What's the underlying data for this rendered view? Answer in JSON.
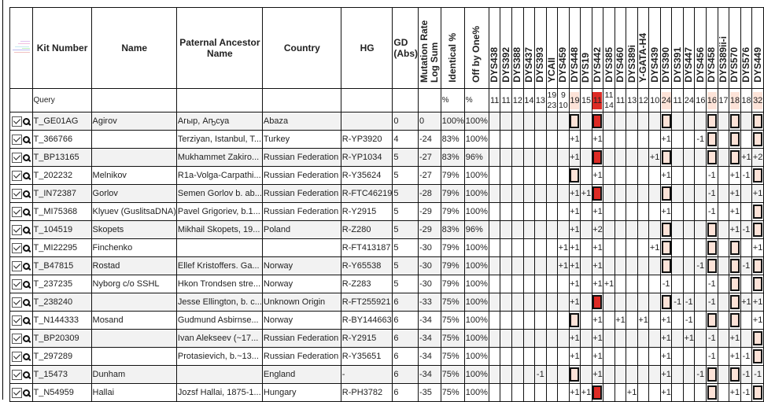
{
  "colors": {
    "match_highlight": "#fde3d8",
    "mismatch_red": "#dd2b25",
    "alt_row": "#f2f2f2"
  },
  "headers": {
    "tree_icon": "tree-icon",
    "kit": "Kit Number",
    "name": "Name",
    "ancestor": "Paternal Ancestor Name",
    "country": "Country",
    "hg": "HG",
    "gd": "GD (Abs)",
    "mut": "Mutation Rate Log Sum",
    "ident": "Identical %",
    "off": "Off by One%",
    "markers": [
      "DYS438",
      "DYS392",
      "DYS388",
      "DYS437",
      "DYS393",
      "YCAII",
      "DYS459",
      "DYS448",
      "DYS19",
      "DYS442",
      "DYS385",
      "DYS460",
      "DYS389i",
      "Y-GATA-H4",
      "DYS439",
      "DYS390",
      "DYS391",
      "DYS447",
      "DYS456",
      "DYS458",
      "DYS389ii-i",
      "DYS570",
      "DYS576",
      "DYS449"
    ]
  },
  "query": {
    "label": "Query",
    "ident": "%",
    "off": "%",
    "values": [
      "11",
      "11",
      "12",
      "14",
      "13",
      "19 23",
      "9 10",
      "19",
      "15",
      "11",
      "11 14",
      "11",
      "13",
      "12",
      "10",
      "24",
      "11",
      "24",
      "16",
      "16",
      "17",
      "18",
      "18",
      "32"
    ],
    "highlight": [
      "",
      "",
      "",
      "",
      "",
      "",
      "",
      "pink",
      "",
      "red",
      "",
      "",
      "",
      "",
      "",
      "pink",
      "",
      "",
      "",
      "pink",
      "",
      "pink",
      "",
      "pink"
    ]
  },
  "rows": [
    {
      "kit": "T_GE01AG",
      "name": "Agirov",
      "ancestor": "Агыр, Аҧсуа",
      "country": "Abaza",
      "hg": "",
      "gd": "0",
      "mut": "0",
      "ident": "100%",
      "off": "100%",
      "checked": true,
      "cells": [
        "",
        "",
        "",
        "",
        "",
        "",
        "",
        "box",
        "",
        "red",
        "",
        "",
        "",
        "",
        "",
        "box",
        "",
        "",
        "",
        "box",
        "",
        "box",
        "",
        "box"
      ]
    },
    {
      "kit": "T_366766",
      "name": "",
      "ancestor": "Terziyan, Istanbul, T...",
      "country": "Turkey",
      "hg": "R-YP3920",
      "gd": "4",
      "mut": "-24",
      "ident": "83%",
      "off": "100%",
      "checked": true,
      "cells": [
        "",
        "",
        "",
        "",
        "",
        "",
        "",
        "+1",
        "",
        "+1",
        "",
        "",
        "",
        "",
        "",
        "+1",
        "",
        "",
        "-1",
        "box",
        "",
        "box",
        "",
        "box"
      ]
    },
    {
      "kit": "T_BP13165",
      "name": "",
      "ancestor": "Mukhammet Zakiro...",
      "country": "Russian Federation",
      "hg": "R-YP1034",
      "gd": "5",
      "mut": "-27",
      "ident": "83%",
      "off": "96%",
      "checked": true,
      "cells": [
        "",
        "",
        "",
        "",
        "",
        "",
        "",
        "+1",
        "",
        "red",
        "",
        "",
        "",
        "",
        "+1",
        "box",
        "",
        "",
        "",
        "box",
        "",
        "box",
        "+1",
        "+2"
      ]
    },
    {
      "kit": "T_202232",
      "name": "Melnikov",
      "ancestor": "R1a-Volga-Carpathi...",
      "country": "Russian Federation",
      "hg": "R-Y35624",
      "gd": "5",
      "mut": "-27",
      "ident": "79%",
      "off": "100%",
      "checked": true,
      "cells": [
        "",
        "",
        "",
        "",
        "",
        "",
        "",
        "box",
        "",
        "+1",
        "",
        "",
        "",
        "",
        "",
        "+1",
        "",
        "",
        "",
        "-1",
        "",
        "+1",
        "-1",
        "box"
      ]
    },
    {
      "kit": "T_IN72387",
      "name": "Gorlov",
      "ancestor": "Semen Gorlov b. ab...",
      "country": "Russian Federation",
      "hg": "R-FTC46219",
      "gd": "5",
      "mut": "-28",
      "ident": "79%",
      "off": "100%",
      "checked": true,
      "cells": [
        "",
        "",
        "",
        "",
        "",
        "",
        "",
        "+1",
        "+1",
        "red",
        "",
        "",
        "",
        "",
        "",
        "box",
        "",
        "",
        "",
        "-1",
        "",
        "+1",
        "",
        "+1"
      ]
    },
    {
      "kit": "T_MI75368",
      "name": "Klyuev (GuslitsaDNA)",
      "ancestor": "Pavel Grigoriev, b.1...",
      "country": "Russian Federation",
      "hg": "R-Y2915",
      "gd": "5",
      "mut": "-29",
      "ident": "79%",
      "off": "100%",
      "checked": true,
      "cells": [
        "",
        "",
        "",
        "",
        "",
        "",
        "",
        "+1",
        "",
        "+1",
        "",
        "",
        "",
        "",
        "",
        "+1",
        "",
        "",
        "",
        "-1",
        "",
        "+1",
        "",
        "box"
      ]
    },
    {
      "kit": "T_104519",
      "name": "Skopets",
      "ancestor": "Mikhail Skopets, 19...",
      "country": "Poland",
      "hg": "R-Z280",
      "gd": "5",
      "mut": "-29",
      "ident": "83%",
      "off": "96%",
      "checked": true,
      "cells": [
        "",
        "",
        "",
        "",
        "",
        "",
        "",
        "+1",
        "",
        "+2",
        "",
        "",
        "",
        "",
        "",
        "box",
        "",
        "",
        "",
        "box",
        "",
        "+1",
        "-1",
        "box"
      ]
    },
    {
      "kit": "T_MI22295",
      "name": "Finchenko",
      "ancestor": "",
      "country": "",
      "hg": "R-FT413187",
      "gd": "5",
      "mut": "-30",
      "ident": "79%",
      "off": "100%",
      "checked": true,
      "cells": [
        "",
        "",
        "",
        "",
        "",
        "",
        "+1",
        "+1",
        "",
        "+1",
        "",
        "",
        "",
        "",
        "+1",
        "box",
        "",
        "",
        "",
        "box",
        "",
        "box",
        "",
        "+1"
      ]
    },
    {
      "kit": "T_B47815",
      "name": "Rostad",
      "ancestor": "Ellef Kristoffers. Ga...",
      "country": "Norway",
      "hg": "R-Y65538",
      "gd": "5",
      "mut": "-30",
      "ident": "79%",
      "off": "100%",
      "checked": true,
      "cells": [
        "",
        "",
        "",
        "",
        "",
        "",
        "+1",
        "+1",
        "",
        "+1",
        "",
        "",
        "",
        "",
        "",
        "box",
        "",
        "",
        "-1",
        "box",
        "",
        "box",
        "-1",
        "box"
      ]
    },
    {
      "kit": "T_237235",
      "name": "Nyborg c/o SSHL",
      "ancestor": "Hkon Trondsen stre...",
      "country": "Norway",
      "hg": "R-Z283",
      "gd": "5",
      "mut": "-30",
      "ident": "79%",
      "off": "100%",
      "checked": true,
      "cells": [
        "",
        "",
        "",
        "",
        "",
        "",
        "",
        "+1",
        "",
        "+1",
        "+1",
        "",
        "",
        "",
        "",
        "-1",
        "",
        "",
        "",
        "-1",
        "",
        "box",
        "",
        "box"
      ]
    },
    {
      "kit": "T_238240",
      "name": "",
      "ancestor": "Jesse Ellington, b. c...",
      "country": "Unknown Origin",
      "hg": "R-FT255921",
      "gd": "6",
      "mut": "-33",
      "ident": "75%",
      "off": "100%",
      "checked": true,
      "cells": [
        "",
        "",
        "",
        "",
        "",
        "",
        "",
        "+1",
        "",
        "red",
        "",
        "",
        "",
        "",
        "",
        "box",
        "-1",
        "-1",
        "",
        "-1",
        "",
        "box",
        "+1",
        "+1"
      ]
    },
    {
      "kit": "T_N144333",
      "name": "Mosand",
      "ancestor": "Gudmund Asbirnse...",
      "country": "Norway",
      "hg": "R-BY144663",
      "gd": "6",
      "mut": "-34",
      "ident": "75%",
      "off": "100%",
      "checked": true,
      "cells": [
        "",
        "",
        "",
        "",
        "",
        "",
        "",
        "box",
        "",
        "+1",
        "",
        "+1",
        "",
        "+1",
        "",
        "+1",
        "",
        "-1",
        "",
        "box",
        "",
        "box",
        "",
        "+1"
      ]
    },
    {
      "kit": "T_BP20309",
      "name": "",
      "ancestor": "Ivan Alekseev (~17...",
      "country": "Russian Federation",
      "hg": "R-Y2915",
      "gd": "6",
      "mut": "-34",
      "ident": "75%",
      "off": "100%",
      "checked": true,
      "cells": [
        "",
        "",
        "",
        "",
        "",
        "",
        "",
        "+1",
        "",
        "+1",
        "",
        "",
        "",
        "",
        "",
        "+1",
        "",
        "+1",
        "",
        "-1",
        "",
        "+1",
        "",
        "box"
      ]
    },
    {
      "kit": "T_297289",
      "name": "",
      "ancestor": "Protasievich, b.~13...",
      "country": "Russian Federation",
      "hg": "R-Y35651",
      "gd": "6",
      "mut": "-34",
      "ident": "75%",
      "off": "100%",
      "checked": true,
      "cells": [
        "",
        "",
        "",
        "",
        "",
        "",
        "",
        "+1",
        "",
        "+1",
        "",
        "",
        "",
        "",
        "",
        "+1",
        "",
        "",
        "",
        "-1",
        "",
        "+1",
        "-1",
        "box"
      ]
    },
    {
      "kit": "T_15473",
      "name": "Dunham",
      "ancestor": "",
      "country": "England",
      "hg": "-",
      "gd": "6",
      "mut": "-34",
      "ident": "75%",
      "off": "100%",
      "checked": true,
      "cells": [
        "",
        "",
        "",
        "",
        "-1",
        "",
        "",
        "box",
        "",
        "+1",
        "",
        "",
        "",
        "",
        "",
        "+1",
        "",
        "",
        "-1",
        "box",
        "",
        "box",
        "-1",
        "-1"
      ]
    },
    {
      "kit": "T_N54959",
      "name": "Hallai",
      "ancestor": "Jozsf Hallai, 1875-1...",
      "country": "Hungary",
      "hg": "R-PH3782",
      "gd": "6",
      "mut": "-35",
      "ident": "75%",
      "off": "100%",
      "checked": true,
      "cells": [
        "",
        "",
        "",
        "",
        "",
        "",
        "",
        "+1",
        "+1",
        "red",
        "",
        "",
        "+1",
        "",
        "",
        "+1",
        "",
        "",
        "",
        "box",
        "",
        "+1",
        "-1",
        "box"
      ]
    }
  ]
}
